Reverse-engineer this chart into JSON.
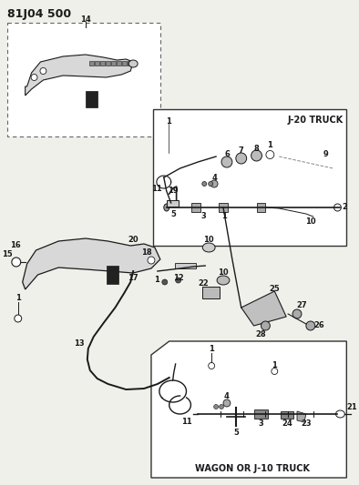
{
  "title": "81J04 500",
  "bg_color": "#f0f0eb",
  "line_color": "#1a1a1a",
  "box1_label": "J-20 TRUCK",
  "box2_label": "WAGON OR J-10 TRUCK",
  "font_size_title": 9,
  "font_size_label": 6
}
